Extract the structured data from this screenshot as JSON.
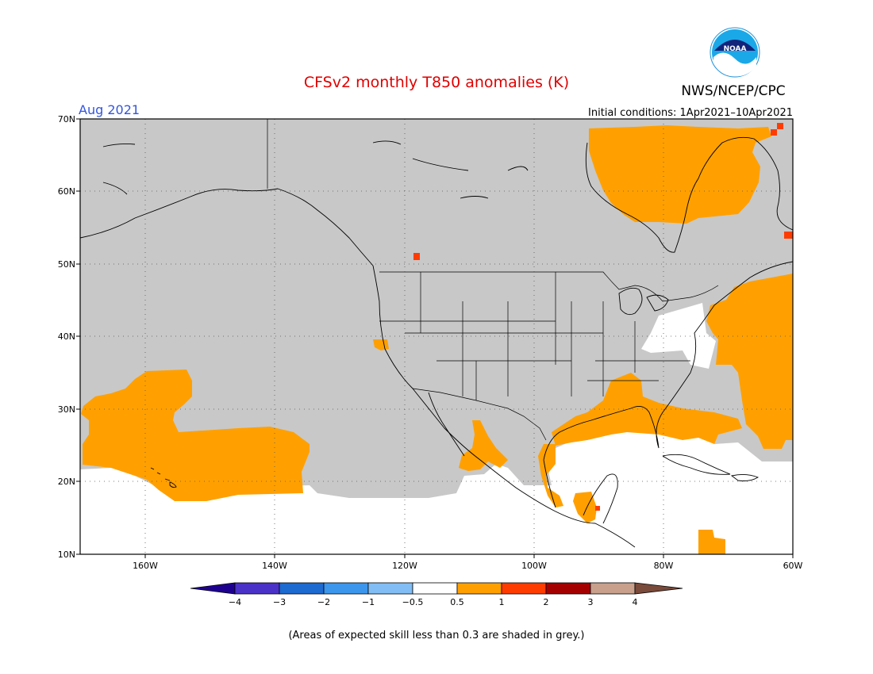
{
  "header": {
    "title": "CFSv2 monthly T850 anomalies (K)",
    "month": "Aug 2021",
    "initial_conditions": "Initial conditions: 1Apr2021–10Apr2021",
    "agency": "NWS/NCEP/CPC",
    "logo_text": "NOAA"
  },
  "map": {
    "lon_range": [
      -170,
      -60
    ],
    "lat_range": [
      10,
      70
    ],
    "lat_ticks": [
      "70N",
      "60N",
      "50N",
      "40N",
      "30N",
      "20N",
      "10N"
    ],
    "lon_ticks": [
      "160W",
      "140W",
      "120W",
      "100W",
      "80W",
      "60W"
    ]
  },
  "legend": {
    "labels": [
      "−4",
      "−3",
      "−2",
      "−1",
      "−0.5",
      "0.5",
      "1",
      "2",
      "3",
      "4"
    ],
    "colors": {
      "lt_m4": "#1e0091",
      "m4_m3": "#4a32c8",
      "m3_m2": "#1d6ad0",
      "m2_m1": "#3c96ec",
      "m1_m05": "#82bef5",
      "near_zero": "#ffffff",
      "p05_1": "#ffa000",
      "p1_2": "#ff3c00",
      "p2_3": "#a50000",
      "p3_4": "#c8a08c",
      "gt_4": "#7a4a3a"
    }
  },
  "colors": {
    "grey_low_skill": "#c8c8c8",
    "anomaly_orange": "#ffa000",
    "anomaly_red": "#ff3c00",
    "title_red": "#e00000",
    "month_blue": "#3355dd"
  },
  "footnote": "(Areas of expected skill less than 0.3 are shaded in grey.)"
}
